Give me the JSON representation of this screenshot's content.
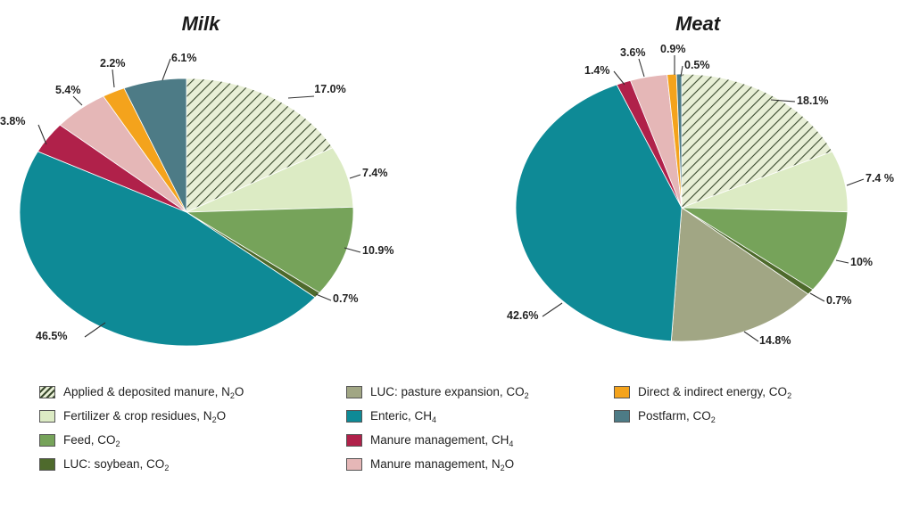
{
  "chart_data": [
    {
      "type": "pie",
      "title": "Milk",
      "series": [
        {
          "label": "Applied & deposited manure, N2O",
          "value": 17.0,
          "display": "17.0%"
        },
        {
          "label": "Fertilizer & crop residues, N2O",
          "value": 7.4,
          "display": "7.4%"
        },
        {
          "label": "Feed, CO2",
          "value": 10.9,
          "display": "10.9%"
        },
        {
          "label": "LUC: soybean, CO2",
          "value": 0.7,
          "display": "0.7%"
        },
        {
          "label": "LUC: pasture expansion, CO2",
          "value": 0,
          "display": ""
        },
        {
          "label": "Enteric, CH4",
          "value": 46.5,
          "display": "46.5%"
        },
        {
          "label": "Manure management, CH4",
          "value": 3.8,
          "display": "3.8%"
        },
        {
          "label": "Manure management, N2O",
          "value": 5.4,
          "display": "5.4%"
        },
        {
          "label": "Direct & indirect energy, CO2",
          "value": 2.2,
          "display": "2.2%"
        },
        {
          "label": "Postfarm, CO2",
          "value": 6.1,
          "display": "6.1%"
        }
      ]
    },
    {
      "type": "pie",
      "title": "Meat",
      "series": [
        {
          "label": "Applied & deposited manure, N2O",
          "value": 18.1,
          "display": "18.1%"
        },
        {
          "label": "Fertilizer & crop residues, N2O",
          "value": 7.4,
          "display": "7.4 %"
        },
        {
          "label": "Feed, CO2",
          "value": 10,
          "display": "10%"
        },
        {
          "label": "LUC: soybean, CO2",
          "value": 0.7,
          "display": "0.7%"
        },
        {
          "label": "LUC: pasture expansion, CO2",
          "value": 14.8,
          "display": "14.8%"
        },
        {
          "label": "Enteric, CH4",
          "value": 42.6,
          "display": "42.6%"
        },
        {
          "label": "Manure management, CH4",
          "value": 1.4,
          "display": "1.4%"
        },
        {
          "label": "Manure management, N2O",
          "value": 3.6,
          "display": "3.6%"
        },
        {
          "label": "Direct & indirect energy, CO2",
          "value": 0.9,
          "display": "0.9%"
        },
        {
          "label": "Postfarm, CO2",
          "value": 0.5,
          "display": "0.5%"
        }
      ]
    }
  ],
  "legend": [
    {
      "key": "applied",
      "text": "Applied & deposited manure, N",
      "sub": "2",
      "tail": "O",
      "color": "#dfe9c8",
      "pattern": "hatch"
    },
    {
      "key": "fertilizer",
      "text": "Fertilizer & crop residues, N",
      "sub": "2",
      "tail": "O",
      "color": "#dcebc4",
      "pattern": "none"
    },
    {
      "key": "feed",
      "text": "Feed, CO",
      "sub": "2",
      "tail": "",
      "color": "#76a35a",
      "pattern": "none"
    },
    {
      "key": "luc_soy",
      "text": "LUC: soybean, CO",
      "sub": "2",
      "tail": "",
      "color": "#4e6a2c",
      "pattern": "none"
    },
    {
      "key": "luc_pasture",
      "text": "LUC: pasture expansion, CO",
      "sub": "2",
      "tail": "",
      "color": "#a1a684",
      "pattern": "none"
    },
    {
      "key": "enteric",
      "text": "Enteric, CH",
      "sub": "4",
      "tail": "",
      "color": "#0e8a96",
      "pattern": "none"
    },
    {
      "key": "manure_ch4",
      "text": "Manure management, CH",
      "sub": "4",
      "tail": "",
      "color": "#b0214a",
      "pattern": "none"
    },
    {
      "key": "manure_n2o",
      "text": "Manure management, N",
      "sub": "2",
      "tail": "O",
      "color": "#e5b7b7",
      "pattern": "none"
    },
    {
      "key": "energy",
      "text": "Direct & indirect energy, CO",
      "sub": "2",
      "tail": "",
      "color": "#f4a31c",
      "pattern": "none"
    },
    {
      "key": "postfarm",
      "text": "Postfarm, CO",
      "sub": "2",
      "tail": "",
      "color": "#4d7b86",
      "pattern": "none"
    }
  ]
}
